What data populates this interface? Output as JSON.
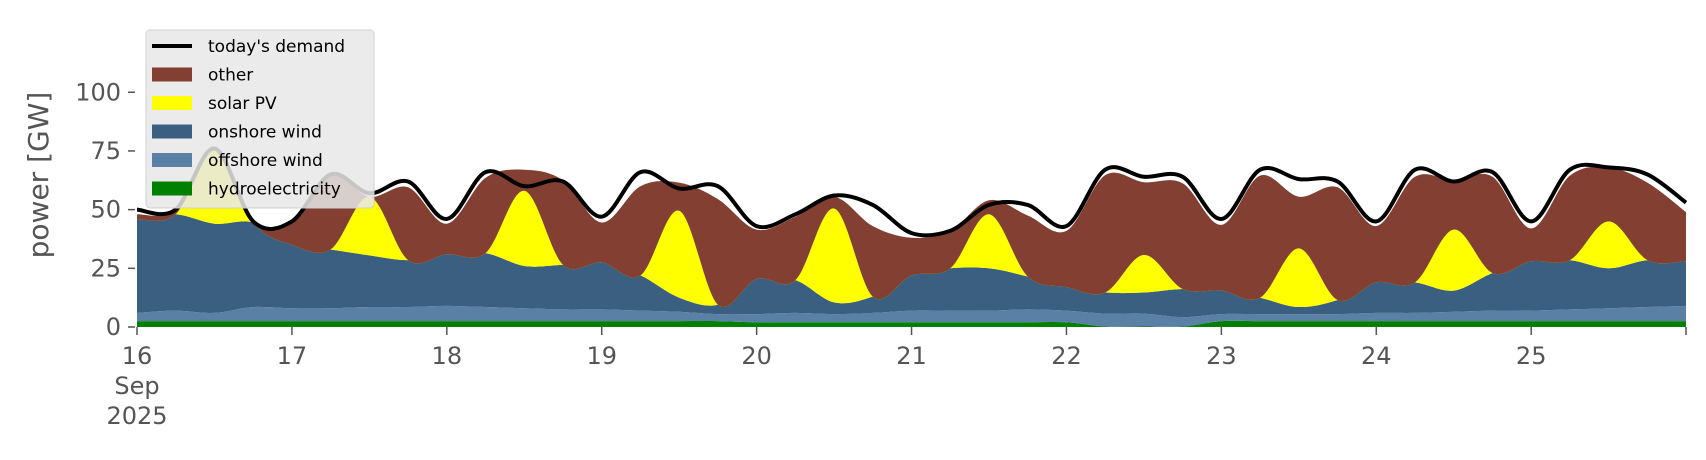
{
  "chart_data": {
    "type": "area",
    "title": "",
    "xlabel": "",
    "ylabel": "power [GW]",
    "ylim": [
      0,
      118
    ],
    "xlim": [
      "2025-09-16T00:00",
      "2025-09-25T23:59"
    ],
    "grid": false,
    "legend_position": "top-left",
    "x_ticks": [
      {
        "date": "2025-09-16",
        "label": "16",
        "sub1": "Sep",
        "sub2": "2025"
      },
      {
        "date": "2025-09-17",
        "label": "17"
      },
      {
        "date": "2025-09-18",
        "label": "18"
      },
      {
        "date": "2025-09-19",
        "label": "19"
      },
      {
        "date": "2025-09-20",
        "label": "20"
      },
      {
        "date": "2025-09-21",
        "label": "21"
      },
      {
        "date": "2025-09-22",
        "label": "22"
      },
      {
        "date": "2025-09-23",
        "label": "23"
      },
      {
        "date": "2025-09-24",
        "label": "24"
      },
      {
        "date": "2025-09-25",
        "label": "25"
      }
    ],
    "y_ticks": [
      0,
      25,
      50,
      75,
      100
    ],
    "x": [
      "2025-09-16T00:00",
      "2025-09-16T06:00",
      "2025-09-16T12:00",
      "2025-09-16T18:00",
      "2025-09-17T00:00",
      "2025-09-17T06:00",
      "2025-09-17T12:00",
      "2025-09-17T18:00",
      "2025-09-18T00:00",
      "2025-09-18T06:00",
      "2025-09-18T12:00",
      "2025-09-18T18:00",
      "2025-09-19T00:00",
      "2025-09-19T06:00",
      "2025-09-19T12:00",
      "2025-09-19T18:00",
      "2025-09-20T00:00",
      "2025-09-20T06:00",
      "2025-09-20T12:00",
      "2025-09-20T18:00",
      "2025-09-21T00:00",
      "2025-09-21T06:00",
      "2025-09-21T12:00",
      "2025-09-21T18:00",
      "2025-09-22T00:00",
      "2025-09-22T06:00",
      "2025-09-22T12:00",
      "2025-09-22T18:00",
      "2025-09-23T00:00",
      "2025-09-23T06:00",
      "2025-09-23T12:00",
      "2025-09-23T18:00",
      "2025-09-24T00:00",
      "2025-09-24T06:00",
      "2025-09-24T12:00",
      "2025-09-24T18:00",
      "2025-09-25T00:00",
      "2025-09-25T06:00",
      "2025-09-25T12:00",
      "2025-09-25T18:00",
      "2025-09-25T23:59"
    ],
    "series": [
      {
        "name": "hydroelectricity",
        "color": "#008000",
        "values": [
          2.5,
          2.5,
          2.5,
          2.5,
          2.5,
          2.5,
          2.5,
          2.5,
          2.5,
          2.5,
          2.5,
          2.5,
          2.5,
          2.5,
          2.5,
          2.5,
          2,
          2,
          2,
          2,
          2,
          2,
          2,
          2,
          2,
          0.2,
          0.2,
          0.2,
          2.5,
          2.5,
          2.5,
          2.5,
          2.5,
          2.5,
          2.5,
          2.5,
          2.5,
          2.5,
          2.5,
          2.5,
          2.5
        ]
      },
      {
        "name": "offshore wind",
        "color": "#5b80a5",
        "values": [
          3.5,
          4.5,
          3.5,
          6,
          5.5,
          5.5,
          6,
          6,
          6.5,
          6,
          5.5,
          5,
          5,
          4.5,
          4,
          3,
          3.5,
          4,
          3.5,
          4,
          5,
          5,
          5,
          5.5,
          5,
          5.5,
          5.5,
          4,
          3,
          3,
          3,
          3,
          3.5,
          3.5,
          4,
          4.5,
          4.5,
          5,
          5.5,
          6,
          6.5
        ]
      },
      {
        "name": "onshore wind",
        "color": "#3b5f80",
        "values": [
          40,
          41,
          38,
          36,
          27,
          25,
          22,
          20,
          22,
          23,
          18,
          19,
          20,
          15,
          6,
          4,
          15,
          14,
          5,
          7,
          15,
          18,
          18,
          14,
          10,
          9,
          9,
          12,
          10,
          7,
          3,
          6,
          13,
          13,
          9,
          16,
          21,
          21,
          17,
          20,
          19
        ]
      },
      {
        "name": "solar PV",
        "color": "#ffff00",
        "values": [
          0,
          0,
          32,
          0,
          0,
          0,
          25,
          0,
          0,
          0,
          32,
          0,
          0,
          0,
          37,
          0,
          0,
          0,
          40,
          0,
          0,
          0,
          23,
          0,
          0,
          0,
          16,
          0,
          0,
          0,
          25,
          0,
          0,
          0,
          26,
          0,
          0,
          0,
          20,
          0,
          0
        ]
      },
      {
        "name": "other",
        "color": "#834032",
        "values": [
          2,
          2,
          0,
          0,
          11,
          32,
          0,
          31,
          13,
          32,
          9,
          36,
          17,
          38,
          12,
          45,
          21,
          27,
          5,
          30,
          16,
          16,
          6,
          26,
          24,
          50,
          31,
          45,
          28,
          52,
          22,
          48,
          24,
          45,
          21,
          41,
          14,
          36,
          23,
          33,
          21
        ]
      },
      {
        "name": "today's demand",
        "color": "#000000",
        "type": "line",
        "values": [
          50,
          50,
          76,
          45,
          45,
          65,
          57,
          62,
          46,
          66,
          60,
          62,
          47,
          66,
          59,
          60,
          43,
          48,
          56,
          52,
          40,
          41,
          52,
          52,
          43,
          67,
          64,
          64,
          46,
          67,
          63,
          62,
          45,
          67,
          62,
          66,
          45,
          67,
          68,
          65,
          53
        ]
      }
    ],
    "legend_order": [
      "today's demand",
      "other",
      "solar PV",
      "onshore wind",
      "offshore wind",
      "hydroelectricity"
    ]
  }
}
